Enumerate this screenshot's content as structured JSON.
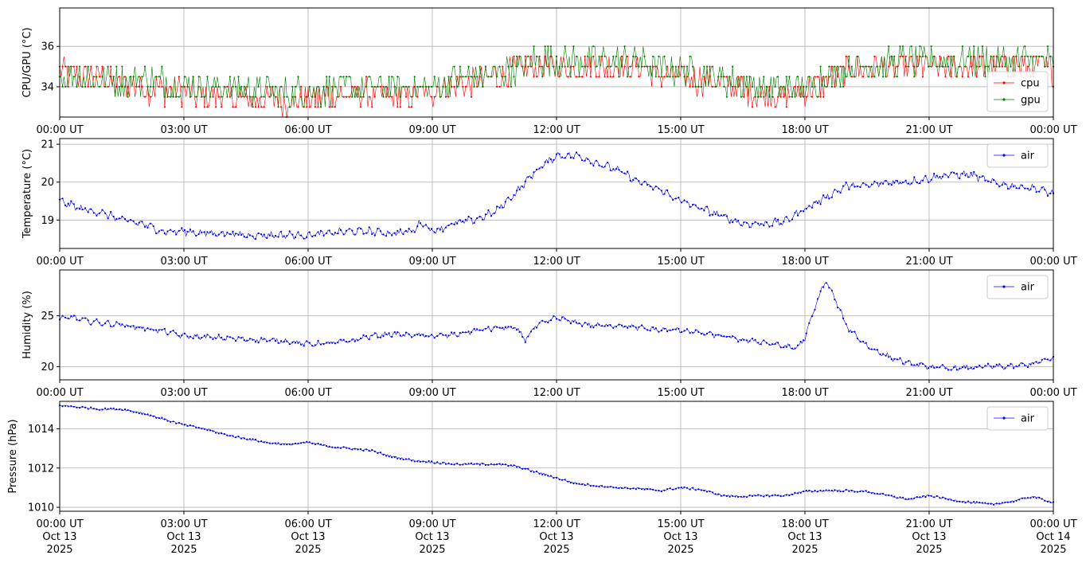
{
  "chart_data": [
    {
      "type": "line",
      "ylabel": "CPU/GPU (°C)",
      "ylim": [
        32.5,
        37.9
      ],
      "yticks": [
        34,
        36
      ],
      "grid": true,
      "legend_loc": "lower-right",
      "x_tick_labels": [
        "00:00 UT",
        "03:00 UT",
        "06:00 UT",
        "09:00 UT",
        "12:00 UT",
        "15:00 UT",
        "18:00 UT",
        "21:00 UT",
        "00:00 UT"
      ],
      "xlim_hours": [
        0,
        24
      ],
      "series": [
        {
          "name": "cpu",
          "color": "#ff0000",
          "points": [
            [
              0,
              34.8
            ],
            [
              0.5,
              34.5
            ],
            [
              1,
              34.4
            ],
            [
              1.5,
              34.0
            ],
            [
              2,
              34.0
            ],
            [
              2.5,
              33.8
            ],
            [
              3,
              33.7
            ],
            [
              3.5,
              33.6
            ],
            [
              4,
              33.5
            ],
            [
              4.5,
              33.5
            ],
            [
              5,
              33.4
            ],
            [
              5.5,
              33.3
            ],
            [
              6,
              33.4
            ],
            [
              6.5,
              33.5
            ],
            [
              7,
              33.6
            ],
            [
              7.5,
              33.6
            ],
            [
              8,
              33.5
            ],
            [
              8.5,
              33.6
            ],
            [
              9,
              33.8
            ],
            [
              9.5,
              34.0
            ],
            [
              10,
              34.2
            ],
            [
              10.5,
              34.5
            ],
            [
              11,
              34.8
            ],
            [
              11.5,
              35.0
            ],
            [
              12,
              35.0
            ],
            [
              12.5,
              35.0
            ],
            [
              13,
              35.0
            ],
            [
              13.5,
              35.0
            ],
            [
              14,
              35.0
            ],
            [
              14.5,
              34.6
            ],
            [
              15,
              34.4
            ],
            [
              15.5,
              34.3
            ],
            [
              16,
              34.2
            ],
            [
              16.5,
              33.8
            ],
            [
              17,
              33.7
            ],
            [
              17.5,
              33.5
            ],
            [
              18,
              33.8
            ],
            [
              18.5,
              34.3
            ],
            [
              19,
              34.8
            ],
            [
              19.5,
              35.0
            ],
            [
              20,
              35.0
            ],
            [
              20.5,
              35.0
            ],
            [
              21,
              35.0
            ],
            [
              21.5,
              35.0
            ],
            [
              22,
              35.0
            ],
            [
              22.5,
              35.0
            ],
            [
              23,
              35.0
            ],
            [
              23.5,
              35.0
            ],
            [
              24,
              34.9
            ]
          ]
        },
        {
          "name": "gpu",
          "color": "#008000",
          "points": [
            [
              0,
              34.6
            ],
            [
              0.5,
              34.6
            ],
            [
              1,
              34.4
            ],
            [
              1.5,
              34.3
            ],
            [
              2,
              34.3
            ],
            [
              2.5,
              34.3
            ],
            [
              3,
              34.0
            ],
            [
              3.5,
              34.0
            ],
            [
              4,
              34.0
            ],
            [
              4.5,
              33.9
            ],
            [
              5,
              33.8
            ],
            [
              5.5,
              33.7
            ],
            [
              6,
              33.8
            ],
            [
              6.5,
              33.8
            ],
            [
              7,
              34.0
            ],
            [
              7.5,
              34.0
            ],
            [
              8,
              34.0
            ],
            [
              8.5,
              34.0
            ],
            [
              9,
              34.0
            ],
            [
              9.5,
              34.3
            ],
            [
              10,
              34.5
            ],
            [
              10.5,
              34.6
            ],
            [
              11,
              34.9
            ],
            [
              11.5,
              35.3
            ],
            [
              12,
              35.3
            ],
            [
              12.5,
              35.3
            ],
            [
              13,
              35.3
            ],
            [
              13.5,
              35.3
            ],
            [
              14,
              35.3
            ],
            [
              14.5,
              34.9
            ],
            [
              15,
              34.8
            ],
            [
              15.5,
              34.6
            ],
            [
              16,
              34.4
            ],
            [
              16.5,
              34.2
            ],
            [
              17,
              34.0
            ],
            [
              17.5,
              33.9
            ],
            [
              18,
              34.0
            ],
            [
              18.5,
              34.5
            ],
            [
              19,
              34.9
            ],
            [
              19.5,
              35.1
            ],
            [
              20,
              35.2
            ],
            [
              20.5,
              35.3
            ],
            [
              21,
              35.3
            ],
            [
              21.5,
              35.3
            ],
            [
              22,
              35.3
            ],
            [
              22.5,
              35.3
            ],
            [
              23,
              35.3
            ],
            [
              23.5,
              35.3
            ],
            [
              24,
              35.3
            ]
          ]
        }
      ]
    },
    {
      "type": "line",
      "ylabel": "Temperature (°C)",
      "ylim": [
        18.25,
        21.15
      ],
      "yticks": [
        19,
        20,
        21
      ],
      "grid": true,
      "legend_loc": "top-right",
      "x_tick_labels": [
        "00:00 UT",
        "03:00 UT",
        "06:00 UT",
        "09:00 UT",
        "12:00 UT",
        "15:00 UT",
        "18:00 UT",
        "21:00 UT",
        "00:00 UT"
      ],
      "xlim_hours": [
        0,
        24
      ],
      "series": [
        {
          "name": "air",
          "color": "#0000ff",
          "points": [
            [
              0,
              19.5
            ],
            [
              0.5,
              19.3
            ],
            [
              1,
              19.2
            ],
            [
              1.5,
              19.0
            ],
            [
              2,
              18.9
            ],
            [
              2.5,
              18.7
            ],
            [
              3,
              18.7
            ],
            [
              3.5,
              18.65
            ],
            [
              4,
              18.65
            ],
            [
              4.5,
              18.6
            ],
            [
              5,
              18.6
            ],
            [
              5.5,
              18.6
            ],
            [
              6,
              18.6
            ],
            [
              6.5,
              18.65
            ],
            [
              7,
              18.7
            ],
            [
              7.5,
              18.7
            ],
            [
              8,
              18.65
            ],
            [
              8.5,
              18.7
            ],
            [
              8.75,
              18.95
            ],
            [
              9,
              18.7
            ],
            [
              9.5,
              18.9
            ],
            [
              10,
              19.0
            ],
            [
              10.5,
              19.2
            ],
            [
              11,
              19.7
            ],
            [
              11.5,
              20.3
            ],
            [
              12,
              20.7
            ],
            [
              12.5,
              20.7
            ],
            [
              13,
              20.5
            ],
            [
              13.5,
              20.3
            ],
            [
              14,
              20.0
            ],
            [
              14.5,
              19.8
            ],
            [
              15,
              19.5
            ],
            [
              15.5,
              19.3
            ],
            [
              16,
              19.1
            ],
            [
              16.5,
              18.9
            ],
            [
              17,
              18.9
            ],
            [
              17.5,
              18.95
            ],
            [
              18,
              19.3
            ],
            [
              18.5,
              19.6
            ],
            [
              19,
              19.9
            ],
            [
              19.5,
              19.9
            ],
            [
              20,
              20.0
            ],
            [
              20.5,
              20.0
            ],
            [
              21,
              20.1
            ],
            [
              21.5,
              20.2
            ],
            [
              22,
              20.2
            ],
            [
              22.5,
              20.0
            ],
            [
              23,
              19.9
            ],
            [
              23.5,
              19.85
            ],
            [
              24,
              19.7
            ]
          ]
        }
      ]
    },
    {
      "type": "line",
      "ylabel": "Humidity (%)",
      "ylim": [
        18.7,
        29.5
      ],
      "yticks": [
        20,
        25
      ],
      "grid": true,
      "legend_loc": "top-right",
      "x_tick_labels": [
        "00:00 UT",
        "03:00 UT",
        "06:00 UT",
        "09:00 UT",
        "12:00 UT",
        "15:00 UT",
        "18:00 UT",
        "21:00 UT",
        "00:00 UT"
      ],
      "xlim_hours": [
        0,
        24
      ],
      "series": [
        {
          "name": "air",
          "color": "#0000ff",
          "points": [
            [
              0,
              24.6
            ],
            [
              0.3,
              24.9
            ],
            [
              0.5,
              24.6
            ],
            [
              1,
              24.3
            ],
            [
              1.5,
              24.1
            ],
            [
              2,
              23.8
            ],
            [
              2.5,
              23.5
            ],
            [
              3,
              23.0
            ],
            [
              3.5,
              22.9
            ],
            [
              4,
              22.8
            ],
            [
              4.5,
              22.7
            ],
            [
              5,
              22.6
            ],
            [
              5.5,
              22.5
            ],
            [
              6,
              22.2
            ],
            [
              6.5,
              22.3
            ],
            [
              7,
              22.5
            ],
            [
              7.5,
              23.0
            ],
            [
              8,
              23.2
            ],
            [
              8.5,
              23.1
            ],
            [
              9,
              23.0
            ],
            [
              9.5,
              23.1
            ],
            [
              10,
              23.5
            ],
            [
              10.5,
              23.8
            ],
            [
              11,
              23.8
            ],
            [
              11.25,
              22.7
            ],
            [
              11.5,
              24.0
            ],
            [
              12,
              24.8
            ],
            [
              12.5,
              24.3
            ],
            [
              13,
              24.0
            ],
            [
              13.5,
              24.1
            ],
            [
              14,
              23.8
            ],
            [
              14.5,
              23.6
            ],
            [
              15,
              23.6
            ],
            [
              15.5,
              23.3
            ],
            [
              16,
              23.0
            ],
            [
              16.5,
              22.6
            ],
            [
              17,
              22.4
            ],
            [
              17.5,
              22.0
            ],
            [
              17.8,
              21.8
            ],
            [
              18,
              22.8
            ],
            [
              18.3,
              26.5
            ],
            [
              18.5,
              28.5
            ],
            [
              18.8,
              26.0
            ],
            [
              19,
              24.0
            ],
            [
              19.5,
              22.0
            ],
            [
              20,
              21.0
            ],
            [
              20.5,
              20.3
            ],
            [
              21,
              20.0
            ],
            [
              21.5,
              19.8
            ],
            [
              22,
              19.9
            ],
            [
              22.5,
              20.0
            ],
            [
              23,
              20.0
            ],
            [
              23.5,
              20.3
            ],
            [
              24,
              20.8
            ]
          ]
        }
      ]
    },
    {
      "type": "line",
      "ylabel": "Pressure (hPa)",
      "ylim": [
        1009.8,
        1015.4
      ],
      "yticks": [
        1010,
        1012,
        1014
      ],
      "grid": true,
      "legend_loc": "top-right",
      "x_tick_labels": [
        "00:00 UT\nOct 13\n2025",
        "03:00 UT\nOct 13\n2025",
        "06:00 UT\nOct 13\n2025",
        "09:00 UT\nOct 13\n2025",
        "12:00 UT\nOct 13\n2025",
        "15:00 UT\nOct 13\n2025",
        "18:00 UT\nOct 13\n2025",
        "21:00 UT\nOct 13\n2025",
        "00:00 UT\nOct 14\n2025"
      ],
      "xlim_hours": [
        0,
        24
      ],
      "series": [
        {
          "name": "air",
          "color": "#0000ff",
          "points": [
            [
              0,
              1015.2
            ],
            [
              0.5,
              1015.1
            ],
            [
              1,
              1015.0
            ],
            [
              1.5,
              1015.0
            ],
            [
              2,
              1014.8
            ],
            [
              2.5,
              1014.5
            ],
            [
              3,
              1014.2
            ],
            [
              3.5,
              1014.0
            ],
            [
              4,
              1013.7
            ],
            [
              4.5,
              1013.5
            ],
            [
              5,
              1013.3
            ],
            [
              5.5,
              1013.2
            ],
            [
              6,
              1013.3
            ],
            [
              6.5,
              1013.1
            ],
            [
              7,
              1013.0
            ],
            [
              7.5,
              1012.9
            ],
            [
              8,
              1012.6
            ],
            [
              8.5,
              1012.4
            ],
            [
              9,
              1012.3
            ],
            [
              9.5,
              1012.2
            ],
            [
              10,
              1012.2
            ],
            [
              10.5,
              1012.2
            ],
            [
              11,
              1012.1
            ],
            [
              11.5,
              1011.8
            ],
            [
              12,
              1011.5
            ],
            [
              12.5,
              1011.2
            ],
            [
              13,
              1011.1
            ],
            [
              13.5,
              1011.0
            ],
            [
              14,
              1010.95
            ],
            [
              14.5,
              1010.85
            ],
            [
              15,
              1011.0
            ],
            [
              15.5,
              1010.9
            ],
            [
              16,
              1010.6
            ],
            [
              16.5,
              1010.55
            ],
            [
              17,
              1010.6
            ],
            [
              17.5,
              1010.6
            ],
            [
              18,
              1010.8
            ],
            [
              18.5,
              1010.85
            ],
            [
              19,
              1010.85
            ],
            [
              19.5,
              1010.8
            ],
            [
              20,
              1010.6
            ],
            [
              20.5,
              1010.4
            ],
            [
              21,
              1010.6
            ],
            [
              21.5,
              1010.4
            ],
            [
              22,
              1010.25
            ],
            [
              22.5,
              1010.15
            ],
            [
              23,
              1010.3
            ],
            [
              23.5,
              1010.55
            ],
            [
              24,
              1010.25
            ]
          ]
        }
      ]
    }
  ]
}
